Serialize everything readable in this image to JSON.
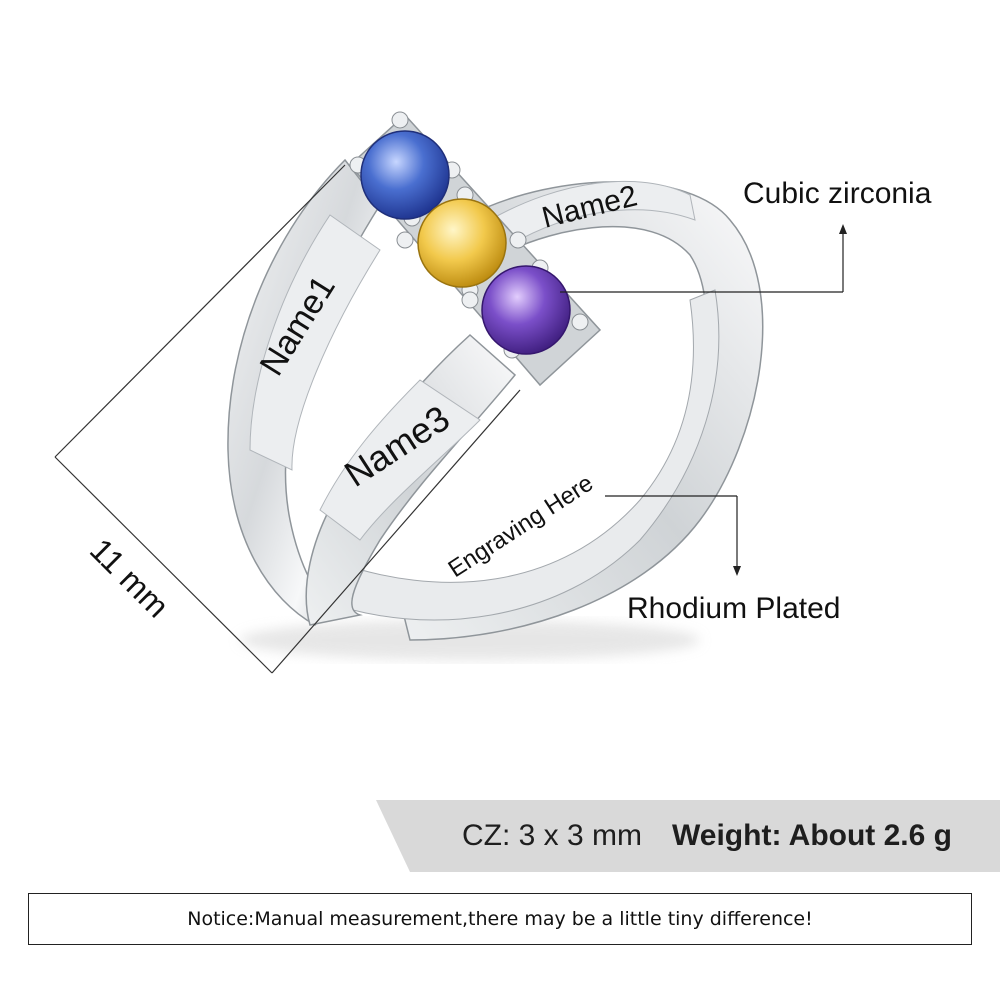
{
  "engravings": {
    "name1": "Name1",
    "name2": "Name2",
    "name3": "Name3",
    "inner": "Engraving Here"
  },
  "callouts": {
    "stone": "Cubic zirconia",
    "plating": "Rhodium Plated",
    "dimension": "11 mm"
  },
  "specs": {
    "cz": "CZ: 3 x 3 mm",
    "weight": "Weight: About 2.6 g"
  },
  "notice": "Notice:Manual measurement,there may be a little tiny difference!",
  "stones": [
    {
      "name": "blue-stone",
      "color": "#4a6fd0"
    },
    {
      "name": "yellow-stone",
      "color": "#f2c94c"
    },
    {
      "name": "purple-stone",
      "color": "#7b4fc9"
    }
  ],
  "colors": {
    "metal": "#d7dadd",
    "metal_dark": "#9ea3a8",
    "spec_bar": "#d9d9d9"
  }
}
